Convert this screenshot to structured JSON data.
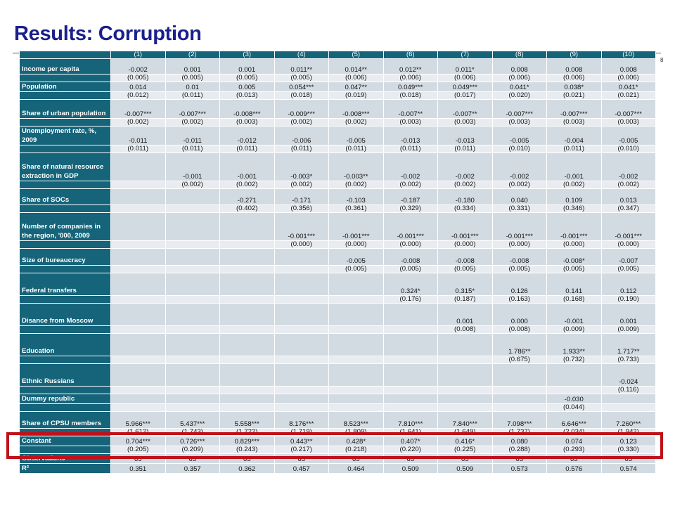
{
  "title": "Results: Corruption",
  "slide_number": "8",
  "columns": [
    "(1)",
    "(2)",
    "(3)",
    "(4)",
    "(5)",
    "(6)",
    "(7)",
    "(8)",
    "(9)",
    "(10)"
  ],
  "rows": [
    {
      "label": "Income per capita",
      "h": 22,
      "values": [
        "-0.002",
        "0.001",
        "0.001",
        "0.011**",
        "0.014**",
        "0.012**",
        "0.011*",
        "0.008",
        "0.008",
        "0.008"
      ]
    },
    {
      "se": true,
      "values": [
        "(0.005)",
        "(0.005)",
        "(0.005)",
        "(0.005)",
        "(0.006)",
        "(0.006)",
        "(0.006)",
        "(0.006)",
        "(0.006)",
        "(0.006)"
      ]
    },
    {
      "label": "Population",
      "h": 14,
      "values": [
        "0.014",
        "0.01",
        "0.005",
        "0.054***",
        "0.047**",
        "0.049***",
        "0.049***",
        "0.041*",
        "0.038*",
        "0.041*"
      ]
    },
    {
      "se": true,
      "values": [
        "(0.012)",
        "(0.011)",
        "(0.013)",
        "(0.018)",
        "(0.019)",
        "(0.018)",
        "(0.017)",
        "(0.020)",
        "(0.021)",
        "(0.021)"
      ]
    },
    {
      "label": "Share of urban population",
      "h": 27,
      "values": [
        "-0.007***",
        "-0.007***",
        "-0.008***",
        "-0.009***",
        "-0.008***",
        "-0.007**",
        "-0.007**",
        "-0.007***",
        "-0.007***",
        "-0.007***"
      ]
    },
    {
      "se": true,
      "values": [
        "(0.002)",
        "(0.002)",
        "(0.003)",
        "(0.002)",
        "(0.002)",
        "(0.003)",
        "(0.003)",
        "(0.003)",
        "(0.003)",
        "(0.003)"
      ]
    },
    {
      "label": "Unemployment rate, %, 2009",
      "h": 26,
      "values": [
        "-0.011",
        "-0.011",
        "-0.012",
        "-0.006",
        "-0.005",
        "-0.013",
        "-0.013",
        "-0.005",
        "-0.004",
        "-0.005"
      ]
    },
    {
      "se": true,
      "values": [
        "(0.011)",
        "(0.011)",
        "(0.011)",
        "(0.011)",
        "(0.011)",
        "(0.011)",
        "(0.011)",
        "(0.010)",
        "(0.011)",
        "(0.010)"
      ]
    },
    {
      "label": "Share of natural resource extraction in GDP",
      "h": 40,
      "values": [
        "",
        "-0.001",
        "-0.001",
        "-0.003*",
        "-0.003**",
        "-0.002",
        "-0.002",
        "-0.002",
        "-0.001",
        "-0.002"
      ]
    },
    {
      "se": true,
      "values": [
        "",
        "(0.002)",
        "(0.002)",
        "(0.002)",
        "(0.002)",
        "(0.002)",
        "(0.002)",
        "(0.002)",
        "(0.002)",
        "(0.002)"
      ]
    },
    {
      "label": "Share of SOCs",
      "h": 23,
      "values": [
        "",
        "",
        "-0.271",
        "-0.171",
        "-0.103",
        "-0.187",
        "-0.180",
        "0.040",
        "0.109",
        "0.013"
      ]
    },
    {
      "se": true,
      "values": [
        "",
        "",
        "(0.402)",
        "(0.356)",
        "(0.361)",
        "(0.329)",
        "(0.334)",
        "(0.331)",
        "(0.346)",
        "(0.347)"
      ]
    },
    {
      "label": "Number of companies in the region, '000, 2009",
      "h": 40,
      "values": [
        "",
        "",
        "",
        "-0.001***",
        "-0.001***",
        "-0.001***",
        "-0.001***",
        "-0.001***",
        "-0.001***",
        "-0.001***"
      ]
    },
    {
      "se": true,
      "values": [
        "",
        "",
        "",
        "(0.000)",
        "(0.000)",
        "(0.000)",
        "(0.000)",
        "(0.000)",
        "(0.000)",
        "(0.000)"
      ]
    },
    {
      "label": "Size of bureaucracy",
      "h": 24,
      "values": [
        "",
        "",
        "",
        "",
        "-0.005",
        "-0.008",
        "-0.008",
        "-0.008",
        "-0.008*",
        "-0.007"
      ]
    },
    {
      "se": true,
      "values": [
        "",
        "",
        "",
        "",
        "(0.005)",
        "(0.005)",
        "(0.005)",
        "(0.005)",
        "(0.005)",
        "(0.005)"
      ]
    },
    {
      "label": "Federal transfers",
      "h": 32,
      "values": [
        "",
        "",
        "",
        "",
        "",
        "0.324*",
        "0.315*",
        "0.126",
        "0.141",
        "0.112"
      ]
    },
    {
      "se": true,
      "values": [
        "",
        "",
        "",
        "",
        "",
        "(0.176)",
        "(0.187)",
        "(0.163)",
        "(0.168)",
        "(0.190)"
      ]
    },
    {
      "label": "Disance from Moscow",
      "h": 32,
      "values": [
        "",
        "",
        "",
        "",
        "",
        "",
        "0.001",
        "0.000",
        "-0.001",
        "0.001"
      ]
    },
    {
      "se": true,
      "values": [
        "",
        "",
        "",
        "",
        "",
        "",
        "(0.008)",
        "(0.008)",
        "(0.009)",
        "(0.009)"
      ]
    },
    {
      "label": "Education",
      "h": 32,
      "values": [
        "",
        "",
        "",
        "",
        "",
        "",
        "",
        "1.786**",
        "1.933**",
        "1.717**"
      ]
    },
    {
      "se": true,
      "values": [
        "",
        "",
        "",
        "",
        "",
        "",
        "",
        "(0.675)",
        "(0.732)",
        "(0.733)"
      ]
    },
    {
      "label": "Ethnic Russians",
      "h": 32,
      "values": [
        "",
        "",
        "",
        "",
        "",
        "",
        "",
        "",
        "",
        "-0.024"
      ]
    },
    {
      "se": true,
      "values": [
        "",
        "",
        "",
        "",
        "",
        "",
        "",
        "",
        "",
        "(0.116)"
      ]
    },
    {
      "label": "Dummy republic",
      "h": 14,
      "values": [
        "",
        "",
        "",
        "",
        "",
        "",
        "",
        "",
        "-0.030",
        ""
      ]
    },
    {
      "se": true,
      "values": [
        "",
        "",
        "",
        "",
        "",
        "",
        "",
        "",
        "(0.044)",
        ""
      ]
    },
    {
      "label": "Share of CPSU members",
      "h": 24,
      "values": [
        "5.966***",
        "5.437***",
        "5.558***",
        "8.176***",
        "8.523***",
        "7.810***",
        "7.840***",
        "7.098***",
        "6.646***",
        "7.260***"
      ]
    },
    {
      "se": true,
      "values": [
        "(1.612)",
        "(1.743)",
        "(1.722)",
        "(1.719)",
        "(1.809)",
        "(1.641)",
        "(1.649)",
        "(1.737)",
        "(2.034)",
        "(1.942)"
      ]
    },
    {
      "label": "Constant",
      "h": 14,
      "values": [
        "0.704***",
        "0.726***",
        "0.829***",
        "0.443**",
        "0.428*",
        "0.407*",
        "0.416*",
        "0.080",
        "0.074",
        "0.123"
      ]
    },
    {
      "se": true,
      "values": [
        "(0.205)",
        "(0.209)",
        "(0.243)",
        "(0.217)",
        "(0.218)",
        "(0.220)",
        "(0.225)",
        "(0.288)",
        "(0.293)",
        "(0.330)"
      ]
    },
    {
      "label": "Observations",
      "h": 13,
      "values": [
        "65",
        "65",
        "65",
        "65",
        "65",
        "65",
        "65",
        "65",
        "65",
        "65"
      ]
    },
    {
      "label": "R²",
      "h": 13,
      "values": [
        "0.351",
        "0.357",
        "0.362",
        "0.457",
        "0.464",
        "0.509",
        "0.509",
        "0.573",
        "0.576",
        "0.574"
      ]
    }
  ],
  "colors": {
    "title": "#1a1f8c",
    "header": "#15647a",
    "cell": "#d3dbe2",
    "highlight": "#c0101a"
  }
}
